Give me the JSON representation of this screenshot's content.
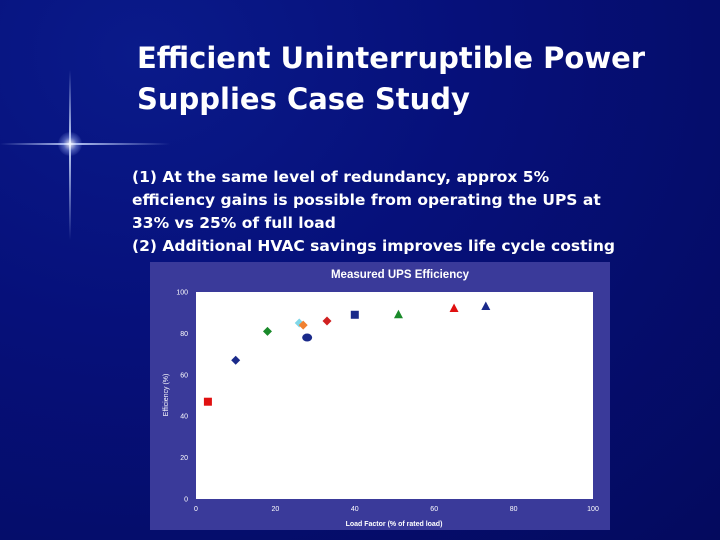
{
  "slide": {
    "title_line1": "Efficient Uninterruptible Power",
    "title_line2": "Supplies Case Study",
    "bullet_lines": [
      "(1) At the same level of redundancy, approx 5%",
      "efficiency gains is possible from operating the UPS at",
      "33% vs 25% of full load",
      "(2) Additional HVAC savings improves life cycle costing"
    ]
  },
  "colors": {
    "background": "#06107a",
    "plot_area": "#ffffff",
    "chart_panel": "#3a3a9a"
  },
  "chart_data": {
    "type": "scatter",
    "title": "Measured UPS Efficiency",
    "xlabel": "Load Factor (% of rated load)",
    "ylabel": "Efficiency (%)",
    "xlim": [
      0,
      100
    ],
    "ylim": [
      0,
      100
    ],
    "x_ticks": [
      "0",
      "20",
      "40",
      "60",
      "80",
      "100"
    ],
    "y_ticks": [
      "0",
      "20",
      "40",
      "60",
      "80",
      "100"
    ],
    "grid": false,
    "legend": "none",
    "points": [
      {
        "x": 3,
        "y": 47,
        "marker": "square",
        "color": "#e01010"
      },
      {
        "x": 10,
        "y": 67,
        "marker": "diamond",
        "color": "#1a2a8a"
      },
      {
        "x": 18,
        "y": 81,
        "marker": "diamond",
        "color": "#1a8a2a"
      },
      {
        "x": 26,
        "y": 85,
        "marker": "diamond",
        "color": "#7fd7e8"
      },
      {
        "x": 27,
        "y": 84,
        "marker": "diamond",
        "color": "#f08030"
      },
      {
        "x": 28,
        "y": 78,
        "marker": "circle",
        "color": "#1a2a8a"
      },
      {
        "x": 33,
        "y": 86,
        "marker": "diamond",
        "color": "#d02020"
      },
      {
        "x": 40,
        "y": 89,
        "marker": "square",
        "color": "#1a2a8a"
      },
      {
        "x": 51,
        "y": 89,
        "marker": "triangle",
        "color": "#1a8a2a"
      },
      {
        "x": 65,
        "y": 92,
        "marker": "triangle",
        "color": "#e01010"
      },
      {
        "x": 73,
        "y": 93,
        "marker": "triangle",
        "color": "#1a2a8a"
      }
    ]
  }
}
